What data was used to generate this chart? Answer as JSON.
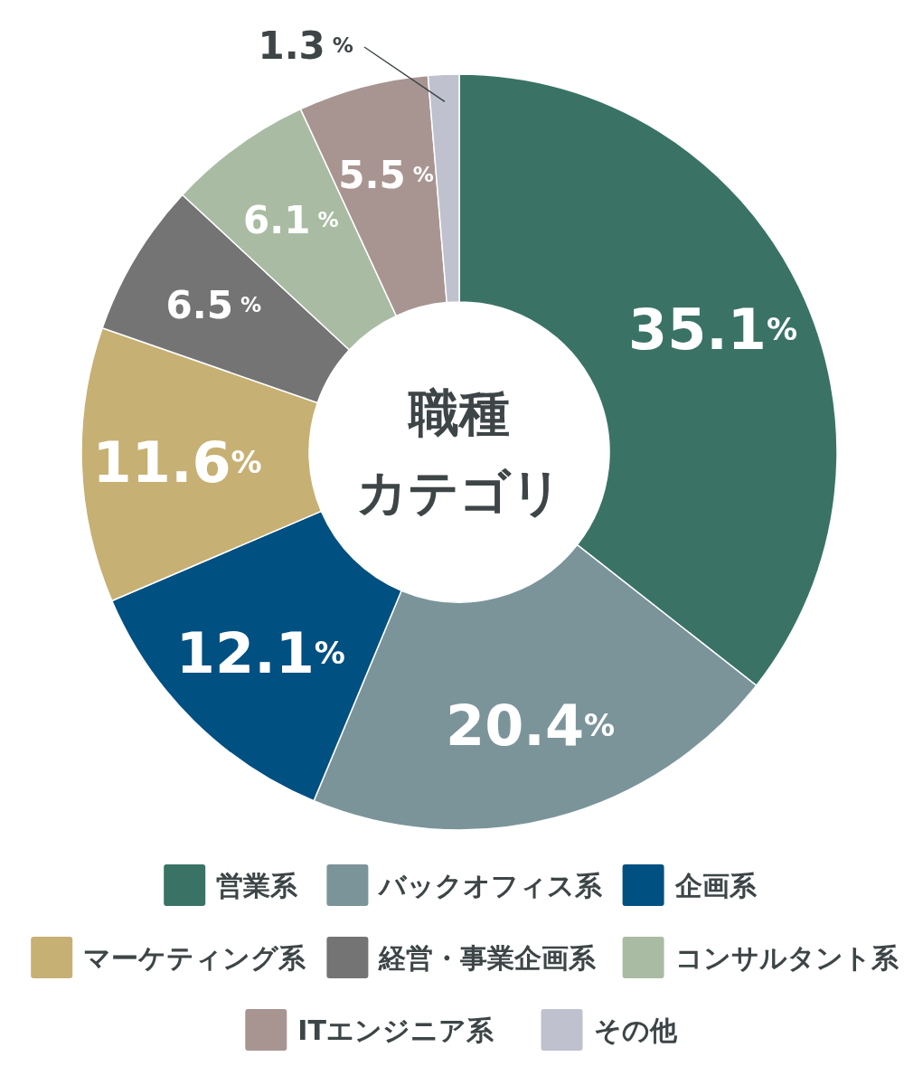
{
  "chart_data": {
    "type": "donut",
    "title": "職種",
    "subtitle": "カテゴリ",
    "categories": [
      "営業系",
      "バックオフィス系",
      "企画系",
      "マーケティング系",
      "経営・事業企画系",
      "コンサルタント系",
      "ITエンジニア系",
      "その他"
    ],
    "values": [
      35.1,
      20.4,
      12.1,
      11.6,
      6.5,
      6.1,
      5.5,
      1.3
    ],
    "colors": [
      "#3a7366",
      "#7b949a",
      "#005082",
      "#c7b073",
      "#747474",
      "#a9bca3",
      "#a89592",
      "#bfc1cf"
    ],
    "value_labels": [
      "35.1%",
      "20.4%",
      "12.1%",
      "11.6%",
      "6.5 %",
      "6.1 %",
      "5.5 %",
      "1.3 %"
    ],
    "legend": "bottom"
  }
}
